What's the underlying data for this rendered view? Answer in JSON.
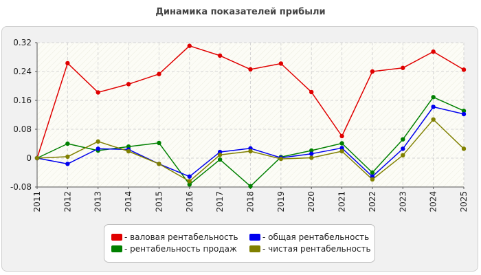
{
  "chart_data": {
    "type": "line",
    "title": "Динамика показателей прибыли",
    "xlabel": "",
    "ylabel": "",
    "x": [
      "2011",
      "2012",
      "2013",
      "2014",
      "2015",
      "2016",
      "2017",
      "2018",
      "2019",
      "2020",
      "2021",
      "2022",
      "2023",
      "2024",
      "2025"
    ],
    "ylim": [
      -0.08,
      0.32
    ],
    "yticks": [
      "0.32",
      "0.24",
      "0.16",
      "0.08",
      "0",
      "-0.08"
    ],
    "grid": true,
    "legend_position": "bottom",
    "series": [
      {
        "name": "- валовая рентабельность",
        "color": "#e00000",
        "values": [
          0,
          0.263,
          0.182,
          0.205,
          0.233,
          0.311,
          0.284,
          0.246,
          0.262,
          0.183,
          0.061,
          0.24,
          0.25,
          0.295,
          0.245
        ]
      },
      {
        "name": "- общая рентабельность",
        "color": "#0000ee",
        "values": [
          0,
          -0.016,
          0.026,
          0.024,
          -0.016,
          -0.051,
          0.017,
          0.027,
          0.001,
          0.012,
          0.028,
          -0.051,
          0.026,
          0.142,
          0.122
        ]
      },
      {
        "name": "- рентабельность продаж",
        "color": "#008000",
        "values": [
          0,
          0.04,
          0.021,
          0.032,
          0.042,
          -0.073,
          -0.004,
          -0.078,
          0.003,
          0.021,
          0.041,
          -0.04,
          0.052,
          0.169,
          0.131
        ]
      },
      {
        "name": "- чистая рентабельность",
        "color": "#808000",
        "values": [
          0,
          0.004,
          0.046,
          0.019,
          -0.016,
          -0.064,
          0.009,
          0.019,
          -0.002,
          0.001,
          0.019,
          -0.059,
          0.008,
          0.107,
          0.026
        ]
      }
    ]
  },
  "legend": {
    "items": [
      {
        "label": "- валовая рентабельность",
        "color": "#e00000"
      },
      {
        "label": "- общая рентабельность",
        "color": "#0000ee"
      },
      {
        "label": "- рентабельность продаж",
        "color": "#008000"
      },
      {
        "label": "- чистая рентабельность",
        "color": "#808000"
      }
    ]
  }
}
